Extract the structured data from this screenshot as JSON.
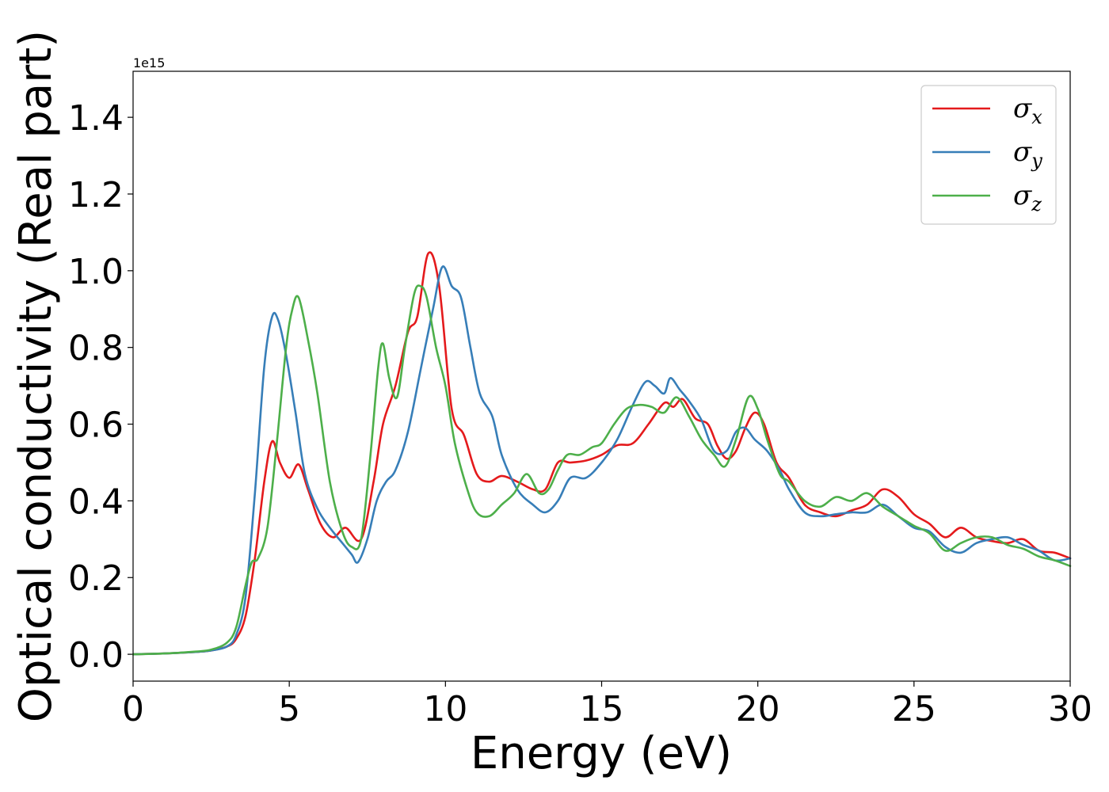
{
  "chart_data": {
    "type": "line",
    "title": "",
    "xlabel": "Energy (eV)",
    "ylabel": "Optical conductivity (Real part)",
    "y_offset_label": "1e15",
    "xlim": [
      0,
      30
    ],
    "ylim": [
      -0.07,
      1.52
    ],
    "xticks": [
      0,
      5,
      10,
      15,
      20,
      25,
      30
    ],
    "xtick_labels": [
      "0",
      "5",
      "10",
      "15",
      "20",
      "25",
      "30"
    ],
    "yticks": [
      0.0,
      0.2,
      0.4,
      0.6,
      0.8,
      1.0,
      1.2,
      1.4
    ],
    "ytick_labels": [
      "0.0",
      "0.2",
      "0.4",
      "0.6",
      "0.8",
      "1.0",
      "1.2",
      "1.4"
    ],
    "grid": false,
    "legend_position": "top-right",
    "series": [
      {
        "name": "σ",
        "subscript": "x",
        "color": "#e41a1c",
        "x": [
          0,
          1,
          2,
          2.5,
          3,
          3.3,
          3.6,
          3.9,
          4.2,
          4.45,
          4.7,
          5.0,
          5.3,
          5.6,
          6.0,
          6.4,
          6.8,
          7.3,
          7.7,
          8.0,
          8.4,
          8.8,
          9.1,
          9.45,
          9.8,
          10.2,
          10.6,
          11.0,
          11.4,
          11.8,
          12.3,
          12.8,
          13.2,
          13.6,
          14.0,
          14.5,
          15.0,
          15.5,
          16.0,
          16.5,
          17.0,
          17.3,
          17.6,
          18.0,
          18.4,
          18.7,
          19.0,
          19.3,
          19.6,
          19.9,
          20.2,
          20.6,
          21.0,
          21.5,
          22.0,
          22.5,
          23.0,
          23.5,
          24.0,
          24.5,
          25.0,
          25.5,
          26.0,
          26.5,
          27.0,
          27.5,
          28.0,
          28.5,
          29.0,
          29.5,
          30.0
        ],
        "values": [
          0.0,
          0.002,
          0.006,
          0.01,
          0.02,
          0.04,
          0.1,
          0.25,
          0.45,
          0.555,
          0.5,
          0.46,
          0.495,
          0.43,
          0.34,
          0.305,
          0.33,
          0.3,
          0.45,
          0.6,
          0.7,
          0.84,
          0.88,
          1.045,
          0.96,
          0.64,
          0.57,
          0.47,
          0.45,
          0.465,
          0.45,
          0.43,
          0.43,
          0.5,
          0.5,
          0.505,
          0.52,
          0.545,
          0.55,
          0.6,
          0.655,
          0.645,
          0.665,
          0.615,
          0.6,
          0.545,
          0.51,
          0.53,
          0.59,
          0.63,
          0.6,
          0.5,
          0.46,
          0.39,
          0.37,
          0.36,
          0.375,
          0.39,
          0.43,
          0.41,
          0.365,
          0.34,
          0.305,
          0.33,
          0.305,
          0.295,
          0.29,
          0.3,
          0.27,
          0.265,
          0.25
        ]
      },
      {
        "name": "σ",
        "subscript": "y",
        "color": "#377eb8",
        "x": [
          0,
          1,
          2,
          2.5,
          3,
          3.3,
          3.6,
          3.9,
          4.2,
          4.45,
          4.65,
          4.9,
          5.2,
          5.5,
          5.9,
          6.3,
          6.7,
          7.0,
          7.2,
          7.5,
          7.8,
          8.1,
          8.4,
          8.8,
          9.2,
          9.6,
          9.9,
          10.2,
          10.5,
          10.8,
          11.1,
          11.5,
          11.8,
          12.3,
          12.8,
          13.2,
          13.6,
          14.0,
          14.5,
          15.0,
          15.5,
          16.0,
          16.4,
          16.7,
          17.0,
          17.2,
          17.5,
          17.8,
          18.2,
          18.6,
          19.0,
          19.3,
          19.6,
          19.9,
          20.3,
          20.7,
          21.0,
          21.5,
          22.0,
          22.5,
          23.0,
          23.5,
          24.0,
          24.5,
          25.0,
          25.5,
          26.0,
          26.5,
          27.0,
          27.5,
          28.0,
          28.5,
          29.0,
          29.5,
          30.0
        ],
        "values": [
          0.0,
          0.002,
          0.006,
          0.01,
          0.02,
          0.05,
          0.15,
          0.42,
          0.75,
          0.88,
          0.87,
          0.78,
          0.63,
          0.47,
          0.38,
          0.33,
          0.29,
          0.26,
          0.24,
          0.3,
          0.4,
          0.45,
          0.48,
          0.58,
          0.74,
          0.9,
          1.01,
          0.96,
          0.93,
          0.8,
          0.68,
          0.62,
          0.52,
          0.43,
          0.39,
          0.37,
          0.4,
          0.46,
          0.46,
          0.5,
          0.56,
          0.65,
          0.71,
          0.7,
          0.68,
          0.72,
          0.69,
          0.66,
          0.61,
          0.53,
          0.53,
          0.58,
          0.59,
          0.56,
          0.53,
          0.48,
          0.43,
          0.37,
          0.36,
          0.365,
          0.37,
          0.37,
          0.39,
          0.36,
          0.33,
          0.32,
          0.28,
          0.265,
          0.29,
          0.3,
          0.305,
          0.285,
          0.27,
          0.245,
          0.25
        ]
      },
      {
        "name": "σ",
        "subscript": "z",
        "color": "#4daf4a",
        "x": [
          0,
          1,
          2,
          2.5,
          3,
          3.3,
          3.6,
          3.8,
          4.0,
          4.3,
          4.6,
          4.9,
          5.1,
          5.3,
          5.6,
          5.9,
          6.3,
          6.7,
          7.0,
          7.3,
          7.6,
          7.85,
          8.0,
          8.2,
          8.45,
          8.7,
          9.0,
          9.2,
          9.4,
          9.7,
          10.0,
          10.3,
          10.7,
          11.0,
          11.4,
          11.8,
          12.2,
          12.6,
          13.0,
          13.3,
          13.6,
          13.9,
          14.3,
          14.7,
          15.0,
          15.4,
          15.8,
          16.2,
          16.6,
          17.0,
          17.4,
          17.8,
          18.2,
          18.6,
          18.95,
          19.3,
          19.7,
          20.0,
          20.3,
          20.7,
          21.0,
          21.5,
          22.0,
          22.5,
          23.0,
          23.5,
          24.0,
          24.5,
          25.0,
          25.5,
          26.0,
          26.5,
          27.0,
          27.5,
          28.0,
          28.5,
          29.0,
          29.5,
          30.0
        ],
        "values": [
          0.0,
          0.002,
          0.007,
          0.012,
          0.03,
          0.07,
          0.18,
          0.24,
          0.25,
          0.33,
          0.55,
          0.8,
          0.9,
          0.93,
          0.82,
          0.68,
          0.45,
          0.32,
          0.28,
          0.3,
          0.52,
          0.75,
          0.81,
          0.72,
          0.67,
          0.8,
          0.94,
          0.96,
          0.93,
          0.8,
          0.7,
          0.55,
          0.43,
          0.37,
          0.36,
          0.39,
          0.42,
          0.47,
          0.42,
          0.43,
          0.48,
          0.52,
          0.52,
          0.54,
          0.55,
          0.6,
          0.64,
          0.65,
          0.645,
          0.63,
          0.67,
          0.62,
          0.56,
          0.52,
          0.49,
          0.56,
          0.67,
          0.64,
          0.56,
          0.47,
          0.45,
          0.4,
          0.385,
          0.41,
          0.4,
          0.42,
          0.385,
          0.36,
          0.335,
          0.315,
          0.27,
          0.29,
          0.305,
          0.305,
          0.285,
          0.275,
          0.255,
          0.245,
          0.23
        ]
      }
    ]
  }
}
